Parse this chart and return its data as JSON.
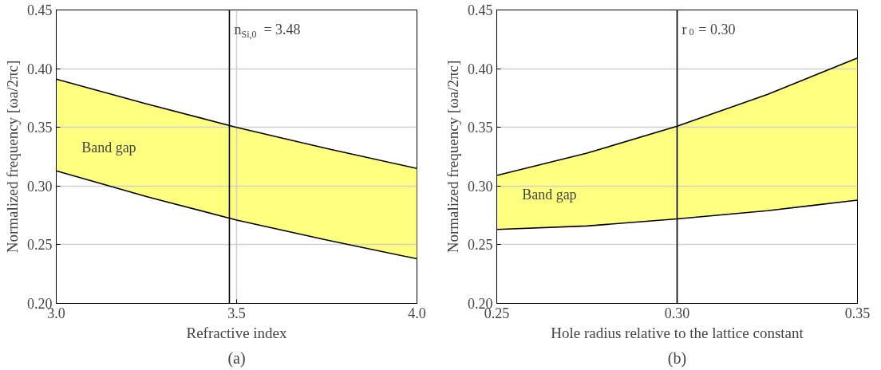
{
  "chart_data": [
    {
      "type": "line",
      "xlabel": "Refractive index",
      "ylabel": "Normalized frequency [ωa/2πc]",
      "x": [
        3.0,
        3.25,
        3.5,
        3.75,
        4.0
      ],
      "series": [
        {
          "color": "#000000",
          "values": [
            0.391,
            0.37,
            0.35,
            0.332,
            0.315
          ]
        },
        {
          "color": "#000000",
          "values": [
            0.313,
            0.291,
            0.271,
            0.254,
            0.238
          ],
          "upper": [
            0.391,
            0.37,
            0.35,
            0.332,
            0.315
          ],
          "lower": [
            0.313,
            0.291,
            0.271,
            0.254,
            0.238
          ]
        }
      ],
      "xlim": [
        3.0,
        4.0
      ],
      "xticks": [
        {
          "value": 3.0,
          "label": "3.0"
        },
        {
          "value": 3.5,
          "label": "3.5"
        },
        {
          "value": 4.0,
          "label": "4.0"
        }
      ],
      "ylim": [
        0.2,
        0.45
      ],
      "yticks": [
        {
          "value": 0.2,
          "label": "0.20"
        },
        {
          "value": 0.25,
          "label": "0.25"
        },
        {
          "value": 0.3,
          "label": "0.30"
        },
        {
          "value": 0.35,
          "label": "0.35"
        },
        {
          "value": 0.4,
          "label": "0.40"
        },
        {
          "value": 0.45,
          "label": "0.45"
        }
      ],
      "grid": true,
      "ref_lines": [
        {
          "axis": "x",
          "value": 3.48,
          "label": "n$_{Si,0}$ = 3.48",
          "color": "#000000"
        }
      ],
      "annotations": [
        "Band gap",
        "(a)"
      ]
    },
    {
      "type": "line",
      "xlabel": "Hole radius relative to the lattice constant",
      "ylabel": "Normalized frequency [ωa/2πc]",
      "x": [
        0.25,
        0.275,
        0.3,
        0.325,
        0.35
      ],
      "series": [
        {
          "color": "#000000",
          "values": [
            0.309,
            0.328,
            0.351,
            0.378,
            0.409
          ]
        },
        {
          "color": "#000000",
          "values": [
            0.263,
            0.266,
            0.272,
            0.279,
            0.288
          ],
          "upper": [
            0.309,
            0.328,
            0.351,
            0.378,
            0.409
          ],
          "lower": [
            0.263,
            0.266,
            0.272,
            0.279,
            0.288
          ]
        }
      ],
      "xlim": [
        0.25,
        0.35
      ],
      "xticks": [
        {
          "value": 0.25,
          "label": "0.25"
        },
        {
          "value": 0.3,
          "label": "0.30"
        },
        {
          "value": 0.35,
          "label": "0.35"
        }
      ],
      "ylim": [
        0.2,
        0.45
      ],
      "yticks": [
        {
          "value": 0.2,
          "label": "0.20"
        },
        {
          "value": 0.25,
          "label": "0.25"
        },
        {
          "value": 0.3,
          "label": "0.30"
        },
        {
          "value": 0.35,
          "label": "0.35"
        },
        {
          "value": 0.4,
          "label": "0.40"
        },
        {
          "value": 0.45,
          "label": "0.45"
        }
      ],
      "grid": true,
      "ref_lines": [
        {
          "axis": "x",
          "value": 0.3,
          "label": "r$_{0}$ = 0.30",
          "color": "#000000"
        }
      ],
      "annotations": [
        "Band gap",
        "(b)"
      ]
    }
  ]
}
